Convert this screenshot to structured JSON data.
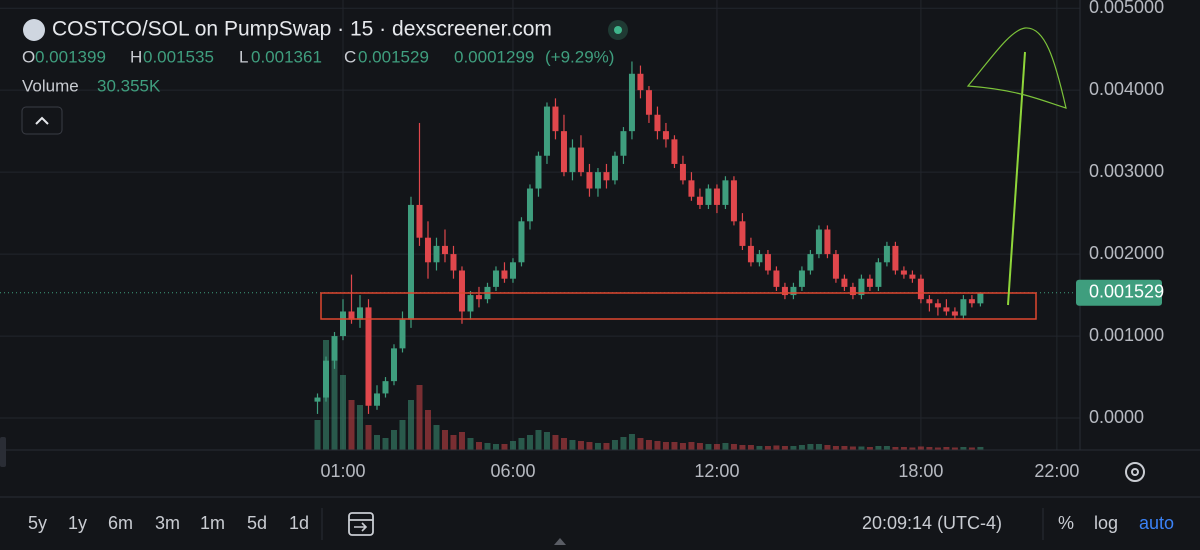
{
  "header": {
    "title": "COSTCO/SOL on PumpSwap · 15 · dexscreener.com",
    "ohlc": [
      {
        "label": "O",
        "value": 0.001399
      },
      {
        "label": "H",
        "value": 0.001535
      },
      {
        "label": "L",
        "value": 0.001361
      },
      {
        "label": "C",
        "value": 0.001529
      }
    ],
    "change": 0.0001299,
    "change_pct": "(+9.29%)",
    "volume_label": "Volume",
    "volume_value": "30.355K"
  },
  "chart_data": {
    "type": "candlestick",
    "x": [
      0.25,
      0.5,
      0.75,
      1,
      1.25,
      1.5,
      1.75,
      2,
      2.25,
      2.5,
      2.75,
      3,
      3.25,
      3.5,
      3.75,
      4,
      4.25,
      4.5,
      4.75,
      5,
      5.25,
      5.5,
      5.75,
      6,
      6.25,
      6.5,
      6.75,
      7,
      7.25,
      7.5,
      7.75,
      8,
      8.25,
      8.5,
      8.75,
      9,
      9.25,
      9.5,
      9.75,
      10,
      10.25,
      10.5,
      10.75,
      11,
      11.25,
      11.5,
      11.75,
      12,
      12.25,
      12.5,
      12.75,
      13,
      13.25,
      13.5,
      13.75,
      14,
      14.25,
      14.5,
      14.75,
      15,
      15.25,
      15.5,
      15.75,
      16,
      16.25,
      16.5,
      16.75,
      17,
      17.25,
      17.5,
      17.75,
      18,
      18.25,
      18.5,
      18.75,
      19,
      19.25,
      19.5,
      19.75
    ],
    "open": [
      0.0002,
      0.00025,
      0.0007,
      0.001,
      0.0013,
      0.0012,
      0.00135,
      0.00015,
      0.0003,
      0.00045,
      0.00085,
      0.0012,
      0.0026,
      0.0022,
      0.0019,
      0.0021,
      0.002,
      0.0018,
      0.0013,
      0.0015,
      0.00145,
      0.0016,
      0.0018,
      0.0017,
      0.0019,
      0.0024,
      0.0028,
      0.0032,
      0.0038,
      0.0035,
      0.003,
      0.0033,
      0.003,
      0.0028,
      0.003,
      0.0029,
      0.0032,
      0.0035,
      0.0042,
      0.004,
      0.0037,
      0.0035,
      0.0034,
      0.0031,
      0.0029,
      0.0027,
      0.0026,
      0.0028,
      0.0026,
      0.0029,
      0.0024,
      0.0021,
      0.0019,
      0.002,
      0.0018,
      0.0016,
      0.0015,
      0.0016,
      0.0018,
      0.002,
      0.0023,
      0.002,
      0.0017,
      0.0016,
      0.0015,
      0.0017,
      0.0016,
      0.0019,
      0.0021,
      0.0018,
      0.00175,
      0.0017,
      0.00145,
      0.0014,
      0.00135,
      0.0013,
      0.00125,
      0.00145,
      0.001399
    ],
    "high": [
      0.0003,
      0.00075,
      0.00105,
      0.00145,
      0.00175,
      0.0015,
      0.00145,
      0.0004,
      0.0005,
      0.0009,
      0.0013,
      0.0027,
      0.0036,
      0.0024,
      0.0022,
      0.0023,
      0.0021,
      0.00185,
      0.00155,
      0.0016,
      0.00165,
      0.00185,
      0.0019,
      0.00195,
      0.00245,
      0.00285,
      0.00325,
      0.00385,
      0.0039,
      0.0037,
      0.0034,
      0.00345,
      0.0031,
      0.00305,
      0.0031,
      0.00325,
      0.00355,
      0.00435,
      0.0043,
      0.00405,
      0.0038,
      0.0036,
      0.00345,
      0.0032,
      0.003,
      0.0028,
      0.00285,
      0.00285,
      0.00295,
      0.00295,
      0.0025,
      0.0022,
      0.00205,
      0.00205,
      0.00185,
      0.00165,
      0.00165,
      0.00185,
      0.00205,
      0.00235,
      0.00235,
      0.00205,
      0.00175,
      0.00165,
      0.00175,
      0.00175,
      0.00195,
      0.00215,
      0.00215,
      0.00185,
      0.0018,
      0.00175,
      0.0015,
      0.00145,
      0.00145,
      0.00135,
      0.0015,
      0.0015,
      0.001535
    ],
    "low": [
      5e-05,
      0.0002,
      0.0006,
      0.00095,
      0.00115,
      0.0011,
      5e-05,
      0.0001,
      0.00025,
      0.0004,
      0.0008,
      0.0011,
      0.0021,
      0.0017,
      0.0018,
      0.0019,
      0.0017,
      0.00115,
      0.0012,
      0.00135,
      0.0014,
      0.00155,
      0.00165,
      0.00165,
      0.00185,
      0.0023,
      0.0027,
      0.0031,
      0.0034,
      0.00295,
      0.0029,
      0.00295,
      0.0027,
      0.0027,
      0.0028,
      0.00285,
      0.0031,
      0.0034,
      0.0039,
      0.0036,
      0.0034,
      0.0033,
      0.00305,
      0.00285,
      0.00265,
      0.00255,
      0.00255,
      0.0025,
      0.00255,
      0.00235,
      0.00205,
      0.00185,
      0.00185,
      0.00175,
      0.00155,
      0.00145,
      0.00145,
      0.00155,
      0.00175,
      0.00195,
      0.00195,
      0.00165,
      0.00155,
      0.00145,
      0.00145,
      0.00155,
      0.00155,
      0.00185,
      0.00175,
      0.0017,
      0.00165,
      0.0014,
      0.0013,
      0.00125,
      0.00125,
      0.0012,
      0.0012,
      0.00135,
      0.001361
    ],
    "close": [
      0.00025,
      0.0007,
      0.001,
      0.0013,
      0.0012,
      0.00135,
      0.00015,
      0.0003,
      0.00045,
      0.00085,
      0.0012,
      0.0026,
      0.0022,
      0.0019,
      0.0021,
      0.002,
      0.0018,
      0.0013,
      0.0015,
      0.00145,
      0.0016,
      0.0018,
      0.0017,
      0.0019,
      0.0024,
      0.0028,
      0.0032,
      0.0038,
      0.0035,
      0.003,
      0.0033,
      0.003,
      0.0028,
      0.003,
      0.0029,
      0.0032,
      0.0035,
      0.0042,
      0.004,
      0.0037,
      0.0035,
      0.0034,
      0.0031,
      0.0029,
      0.0027,
      0.0026,
      0.0028,
      0.0026,
      0.0029,
      0.0024,
      0.0021,
      0.0019,
      0.002,
      0.0018,
      0.0016,
      0.0015,
      0.0016,
      0.0018,
      0.002,
      0.0023,
      0.002,
      0.0017,
      0.0016,
      0.0015,
      0.0017,
      0.0016,
      0.0019,
      0.0021,
      0.0018,
      0.00175,
      0.0017,
      0.00145,
      0.0014,
      0.00135,
      0.0013,
      0.00125,
      0.00145,
      0.0014,
      0.001529
    ],
    "volume": [
      300000,
      1100000,
      1050000,
      750000,
      500000,
      450000,
      250000,
      150000,
      120000,
      200000,
      300000,
      500000,
      650000,
      400000,
      250000,
      200000,
      150000,
      180000,
      120000,
      80000,
      70000,
      60000,
      60000,
      90000,
      120000,
      150000,
      200000,
      180000,
      150000,
      120000,
      100000,
      90000,
      80000,
      70000,
      70000,
      100000,
      130000,
      160000,
      120000,
      100000,
      90000,
      80000,
      80000,
      70000,
      80000,
      70000,
      60000,
      60000,
      70000,
      60000,
      50000,
      50000,
      40000,
      40000,
      45000,
      40000,
      40000,
      50000,
      60000,
      60000,
      50000,
      40000,
      40000,
      35000,
      35000,
      30000,
      40000,
      40000,
      30000,
      30000,
      25000,
      35000,
      30000,
      25000,
      30000,
      25000,
      30000,
      25000,
      30355
    ],
    "xlim": [
      -9.09,
      22.68
    ],
    "xticks": [
      {
        "value": 1,
        "label": "01:00"
      },
      {
        "value": 6,
        "label": "06:00"
      },
      {
        "value": 12,
        "label": "12:00"
      },
      {
        "value": 18,
        "label": "18:00"
      },
      {
        "value": 22,
        "label": "22:00"
      }
    ],
    "ylim": [
      -0.00039,
      0.0051
    ],
    "yticks": [
      {
        "value": 0,
        "label": "0.0000"
      },
      {
        "value": 0.001,
        "label": "0.001000"
      },
      {
        "value": 0.002,
        "label": "0.002000"
      },
      {
        "value": 0.003,
        "label": "0.003000"
      },
      {
        "value": 0.004,
        "label": "0.004000"
      },
      {
        "value": 0.005,
        "label": "0.005000"
      }
    ],
    "volume_lim": [
      0,
      1200000
    ],
    "last_price": 0.001529,
    "grid": true,
    "up_color": "#3f9e7e",
    "down_color": "#e0474c"
  },
  "toolbar": {
    "ranges": [
      "5y",
      "1y",
      "6m",
      "3m",
      "1m",
      "5d",
      "1d"
    ],
    "time": "20:09:14 (UTC-4)",
    "percent": "%",
    "log": "log",
    "auto": "auto"
  }
}
